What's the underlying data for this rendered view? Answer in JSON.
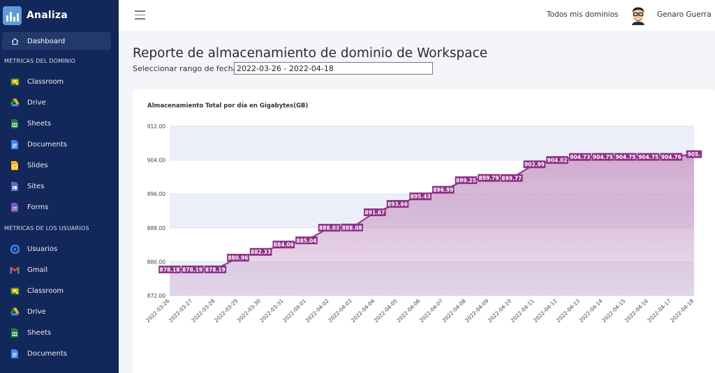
{
  "app": {
    "name": "Analiza"
  },
  "sidebar": {
    "dashboard_label": "Dashboard",
    "domain_section_title": "MÉTRICAS DEL DOMINIO",
    "domain_items": [
      {
        "label": "Classroom",
        "icon": "classroom-icon",
        "color": "#1e8e3e"
      },
      {
        "label": "Drive",
        "icon": "drive-icon",
        "color": "#fbbc04"
      },
      {
        "label": "Sheets",
        "icon": "sheets-icon",
        "color": "#188038"
      },
      {
        "label": "Documents",
        "icon": "docs-icon",
        "color": "#4285f4"
      },
      {
        "label": "Slides",
        "icon": "slides-icon",
        "color": "#f4b400"
      },
      {
        "label": "Sites",
        "icon": "sites-icon",
        "color": "#5b6bc0"
      },
      {
        "label": "Forms",
        "icon": "forms-icon",
        "color": "#7e57c2"
      }
    ],
    "users_section_title": "MÉTRICAS DE LOS USUARIOS",
    "user_items": [
      {
        "label": "Usuarios",
        "icon": "users-icon",
        "color": "#4285f4"
      },
      {
        "label": "Gmail",
        "icon": "gmail-icon",
        "color": "#ea4335"
      },
      {
        "label": "Classroom",
        "icon": "classroom-icon",
        "color": "#1e8e3e"
      },
      {
        "label": "Drive",
        "icon": "drive-icon",
        "color": "#fbbc04"
      },
      {
        "label": "Sheets",
        "icon": "sheets-icon",
        "color": "#188038"
      },
      {
        "label": "Documents",
        "icon": "docs-icon",
        "color": "#4285f4"
      }
    ]
  },
  "header": {
    "domains_link": "Todos mis dominios",
    "user_name": "Genaro Guerra"
  },
  "main": {
    "title": "Reporte de almacenamiento de dominio de Workspace",
    "range_label": "Seleccionar rango de fechas",
    "range_value": "2022-03-26 - 2022-04-18"
  },
  "chart_data": {
    "type": "area",
    "title": "Almacenamiento Total por día en Gigabytes(GB)",
    "x": [
      "2022-03-26",
      "2022-03-27",
      "2022-03-28",
      "2022-03-29",
      "2022-03-30",
      "2022-03-31",
      "2022-04-01",
      "2022-04-02",
      "2022-04-03",
      "2022-04-04",
      "2022-04-05",
      "2022-04-06",
      "2022-04-07",
      "2022-04-08",
      "2022-04-09",
      "2022-04-10",
      "2022-04-11",
      "2022-04-12",
      "2022-04-13",
      "2022-04-14",
      "2022-04-15",
      "2022-04-16",
      "2022-04-17",
      "2022-04-18"
    ],
    "values": [
      878.18,
      878.19,
      878.19,
      880.96,
      882.33,
      884.06,
      885.04,
      888.03,
      888.08,
      891.67,
      893.66,
      895.43,
      896.99,
      899.25,
      899.79,
      899.77,
      902.99,
      904.02,
      904.73,
      904.75,
      904.75,
      904.75,
      904.76,
      905.4
    ],
    "data_labels": [
      "878.18",
      "878.19",
      "878.19",
      "880.96",
      "882.33",
      "884.06",
      "885.04",
      "888.03",
      "888.08",
      "891.67",
      "893.66",
      "895.43",
      "896.99",
      "899.25",
      "899.79",
      "899.77",
      "902.99",
      "904.02",
      "904.73",
      "904.75",
      "904.75",
      "904.75",
      "904.76",
      "905."
    ],
    "yticks": [
      "872.00",
      "880.00",
      "888.00",
      "896.00",
      "904.00",
      "912.00"
    ],
    "ylim": [
      872,
      912
    ],
    "grid": true,
    "colors": {
      "line": "#8e2f86",
      "band": "#eceff8",
      "area": "#c79ac6"
    }
  }
}
